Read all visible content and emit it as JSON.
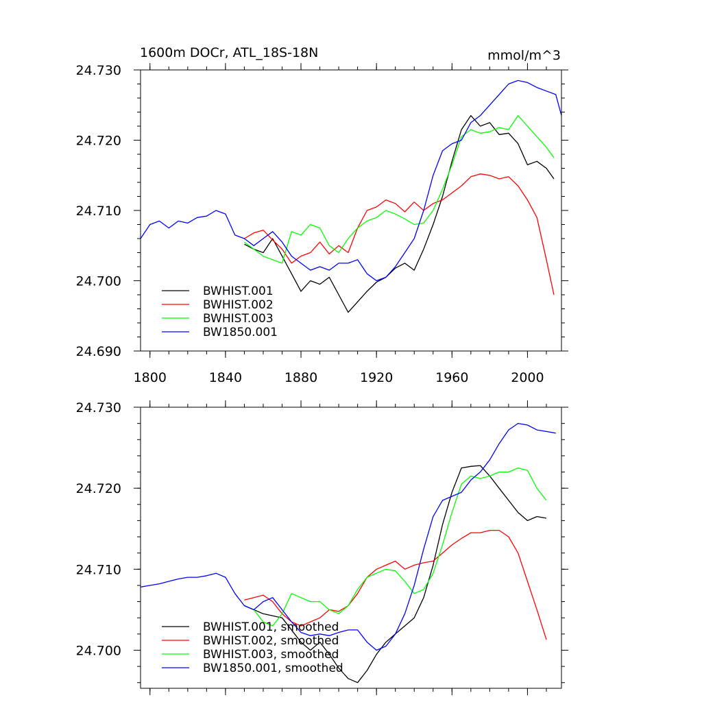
{
  "chart_data": [
    {
      "type": "line",
      "title": "1600m DOCr, ATL_18S-18N",
      "units": "mmol/m^3",
      "xlim": [
        1795,
        2018
      ],
      "ylim": [
        24.69,
        24.73
      ],
      "xticks": [
        1800,
        1840,
        1880,
        1920,
        1960,
        2000
      ],
      "yticks": [
        24.69,
        24.7,
        24.71,
        24.72,
        24.73
      ],
      "ytick_labels": [
        "24.690",
        "24.700",
        "24.710",
        "24.720",
        "24.730"
      ],
      "legend_position": "bottom-left",
      "series": [
        {
          "name": "BWHIST.001",
          "color": "#000000",
          "x": [
            1850,
            1855,
            1860,
            1865,
            1870,
            1875,
            1880,
            1885,
            1890,
            1895,
            1900,
            1905,
            1910,
            1915,
            1920,
            1925,
            1930,
            1935,
            1940,
            1945,
            1950,
            1955,
            1960,
            1965,
            1970,
            1975,
            1980,
            1985,
            1990,
            1995,
            2000,
            2005,
            2010,
            2014
          ],
          "y": [
            24.7052,
            24.7045,
            24.704,
            24.706,
            24.7035,
            24.701,
            24.6985,
            24.7,
            24.6995,
            24.7005,
            24.698,
            24.6955,
            24.697,
            24.6985,
            24.6998,
            24.7005,
            24.7018,
            24.7025,
            24.7015,
            24.7045,
            24.708,
            24.712,
            24.717,
            24.7215,
            24.7235,
            24.722,
            24.7225,
            24.7208,
            24.721,
            24.7195,
            24.7165,
            24.717,
            24.716,
            24.7145
          ]
        },
        {
          "name": "BWHIST.002",
          "color": "#ff0000",
          "x": [
            1850,
            1855,
            1860,
            1865,
            1870,
            1875,
            1880,
            1885,
            1890,
            1895,
            1900,
            1905,
            1910,
            1915,
            1920,
            1925,
            1930,
            1935,
            1940,
            1945,
            1950,
            1955,
            1960,
            1965,
            1970,
            1975,
            1980,
            1985,
            1990,
            1995,
            2000,
            2005,
            2010,
            2014
          ],
          "y": [
            24.706,
            24.7068,
            24.7072,
            24.7058,
            24.7045,
            24.7025,
            24.7035,
            24.704,
            24.7055,
            24.7038,
            24.705,
            24.704,
            24.7075,
            24.71,
            24.7105,
            24.7115,
            24.711,
            24.7098,
            24.7112,
            24.71,
            24.711,
            24.7115,
            24.7125,
            24.7135,
            24.7148,
            24.7152,
            24.715,
            24.7145,
            24.7148,
            24.7135,
            24.7115,
            24.709,
            24.703,
            24.698
          ]
        },
        {
          "name": "BWHIST.003",
          "color": "#00ff00",
          "x": [
            1850,
            1855,
            1860,
            1865,
            1870,
            1875,
            1880,
            1885,
            1890,
            1895,
            1900,
            1905,
            1910,
            1915,
            1920,
            1925,
            1930,
            1935,
            1940,
            1945,
            1950,
            1955,
            1960,
            1965,
            1970,
            1975,
            1980,
            1985,
            1990,
            1995,
            2000,
            2005,
            2010,
            2014
          ],
          "y": [
            24.7055,
            24.7045,
            24.7035,
            24.703,
            24.7025,
            24.707,
            24.7065,
            24.708,
            24.7075,
            24.705,
            24.704,
            24.706,
            24.7075,
            24.7085,
            24.709,
            24.71,
            24.7095,
            24.7088,
            24.708,
            24.7082,
            24.71,
            24.713,
            24.7165,
            24.7205,
            24.7215,
            24.721,
            24.7212,
            24.7218,
            24.7215,
            24.7235,
            24.722,
            24.7205,
            24.719,
            24.7175
          ]
        },
        {
          "name": "BW1850.001",
          "color": "#0000ff",
          "x": [
            1795,
            1800,
            1805,
            1810,
            1815,
            1820,
            1825,
            1830,
            1835,
            1840,
            1845,
            1850,
            1855,
            1860,
            1865,
            1870,
            1875,
            1880,
            1885,
            1890,
            1895,
            1900,
            1905,
            1910,
            1915,
            1920,
            1925,
            1930,
            1935,
            1940,
            1945,
            1950,
            1955,
            1960,
            1965,
            1970,
            1975,
            1980,
            1985,
            1990,
            1995,
            2000,
            2005,
            2010,
            2015,
            2018
          ],
          "y": [
            24.706,
            24.708,
            24.7085,
            24.7075,
            24.7085,
            24.7082,
            24.709,
            24.7092,
            24.71,
            24.7095,
            24.7065,
            24.706,
            24.705,
            24.706,
            24.707,
            24.7055,
            24.7035,
            24.7025,
            24.7015,
            24.702,
            24.7015,
            24.7025,
            24.7025,
            24.703,
            24.701,
            24.7,
            24.7005,
            24.702,
            24.704,
            24.706,
            24.71,
            24.715,
            24.7185,
            24.7195,
            24.72,
            24.7225,
            24.7235,
            24.725,
            24.7265,
            24.728,
            24.7285,
            24.7282,
            24.7275,
            24.727,
            24.7265,
            24.7235
          ]
        }
      ]
    },
    {
      "type": "line",
      "title": "",
      "xlim": [
        1795,
        2018
      ],
      "ylim": [
        24.6953,
        24.73
      ],
      "xticks": [
        1800,
        1840,
        1880,
        1920,
        1960,
        2000
      ],
      "yticks": [
        24.7,
        24.71,
        24.72,
        24.73
      ],
      "ytick_labels": [
        "24.700",
        "24.710",
        "24.720",
        "24.730"
      ],
      "legend_position": "bottom-left",
      "series": [
        {
          "name": "BWHIST.001, smoothed",
          "color": "#000000",
          "x": [
            1850,
            1860,
            1870,
            1880,
            1885,
            1890,
            1895,
            1900,
            1905,
            1910,
            1915,
            1920,
            1925,
            1930,
            1935,
            1940,
            1945,
            1950,
            1955,
            1960,
            1965,
            1970,
            1975,
            1980,
            1985,
            1990,
            1995,
            2000,
            2005,
            2010
          ],
          "y": [
            24.7055,
            24.7045,
            24.704,
            24.701,
            24.7,
            24.701,
            24.6995,
            24.6978,
            24.6965,
            24.696,
            24.6975,
            24.6995,
            24.701,
            24.702,
            24.703,
            24.704,
            24.7065,
            24.7105,
            24.7155,
            24.7195,
            24.7225,
            24.7227,
            24.7228,
            24.7215,
            24.72,
            24.7185,
            24.717,
            24.716,
            24.7165,
            24.7163
          ]
        },
        {
          "name": "BWHIST.002, smoothed",
          "color": "#ff0000",
          "x": [
            1850,
            1855,
            1860,
            1865,
            1870,
            1875,
            1880,
            1885,
            1890,
            1895,
            1900,
            1905,
            1910,
            1915,
            1920,
            1925,
            1930,
            1935,
            1940,
            1945,
            1950,
            1955,
            1960,
            1965,
            1970,
            1975,
            1980,
            1985,
            1990,
            1995,
            2000,
            2005,
            2010
          ],
          "y": [
            24.7062,
            24.7065,
            24.7068,
            24.706,
            24.7045,
            24.7035,
            24.703,
            24.7035,
            24.704,
            24.705,
            24.7048,
            24.7055,
            24.707,
            24.709,
            24.71,
            24.7105,
            24.711,
            24.71,
            24.7105,
            24.7108,
            24.711,
            24.712,
            24.713,
            24.7138,
            24.7145,
            24.7145,
            24.7148,
            24.7148,
            24.714,
            24.712,
            24.7085,
            24.705,
            24.7013
          ]
        },
        {
          "name": "BWHIST.003, smoothed",
          "color": "#00ff00",
          "x": [
            1850,
            1855,
            1860,
            1865,
            1870,
            1875,
            1880,
            1885,
            1890,
            1895,
            1900,
            1905,
            1910,
            1915,
            1920,
            1925,
            1930,
            1935,
            1940,
            1945,
            1950,
            1955,
            1960,
            1965,
            1970,
            1975,
            1980,
            1985,
            1990,
            1995,
            2000,
            2005,
            2010
          ],
          "y": [
            24.7055,
            24.705,
            24.7035,
            24.703,
            24.7045,
            24.707,
            24.7065,
            24.706,
            24.706,
            24.705,
            24.7045,
            24.7055,
            24.7075,
            24.709,
            24.7095,
            24.71,
            24.7098,
            24.7085,
            24.707,
            24.7075,
            24.7095,
            24.713,
            24.717,
            24.7205,
            24.7215,
            24.7212,
            24.7215,
            24.722,
            24.722,
            24.7225,
            24.7222,
            24.72,
            24.7185
          ]
        },
        {
          "name": "BW1850.001, smoothed",
          "color": "#0000ff",
          "x": [
            1795,
            1800,
            1805,
            1810,
            1815,
            1820,
            1825,
            1830,
            1835,
            1840,
            1845,
            1850,
            1855,
            1860,
            1865,
            1870,
            1875,
            1880,
            1885,
            1890,
            1895,
            1900,
            1905,
            1910,
            1915,
            1920,
            1925,
            1930,
            1935,
            1940,
            1945,
            1950,
            1955,
            1960,
            1965,
            1970,
            1975,
            1980,
            1985,
            1990,
            1995,
            2000,
            2005,
            2010,
            2015
          ],
          "y": [
            24.7078,
            24.708,
            24.7082,
            24.7085,
            24.7088,
            24.709,
            24.709,
            24.7092,
            24.7095,
            24.709,
            24.707,
            24.7055,
            24.705,
            24.706,
            24.7065,
            24.705,
            24.7035,
            24.7022,
            24.7018,
            24.702,
            24.7018,
            24.7022,
            24.7025,
            24.7025,
            24.701,
            24.7,
            24.7005,
            24.702,
            24.7045,
            24.708,
            24.7125,
            24.7165,
            24.7185,
            24.719,
            24.7195,
            24.721,
            24.722,
            24.7235,
            24.7255,
            24.7272,
            24.728,
            24.7278,
            24.7272,
            24.727,
            24.7268
          ]
        }
      ]
    }
  ]
}
